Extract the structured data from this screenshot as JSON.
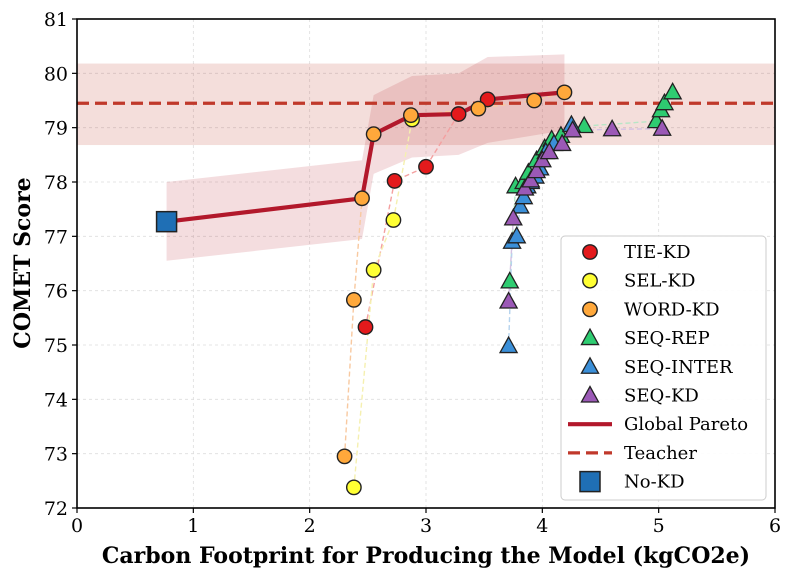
{
  "chart_data": {
    "type": "scatter",
    "xlabel": "Carbon Footprint for Producing the Model (kgCO2e)",
    "ylabel": "COMET Score",
    "xlim": [
      0,
      6
    ],
    "ylim": [
      72,
      81
    ],
    "xticks": [
      "0",
      "1",
      "2",
      "3",
      "4",
      "5",
      "6"
    ],
    "yticks": [
      "72",
      "73",
      "74",
      "75",
      "76",
      "77",
      "78",
      "79",
      "80",
      "81"
    ],
    "grid": true,
    "legend_position": "bottom-right",
    "teacher": {
      "name": "Teacher",
      "y": 79.45,
      "band": [
        78.68,
        80.18
      ],
      "color": "#c0392b"
    },
    "pareto": {
      "name": "Global Pareto",
      "color": "#b2182b",
      "x": [
        0.77,
        2.45,
        2.55,
        2.88,
        3.28,
        3.53,
        4.19
      ],
      "y": [
        77.27,
        77.7,
        78.88,
        79.23,
        79.25,
        79.52,
        79.65
      ],
      "band_upper": [
        78.0,
        78.4,
        79.6,
        79.95,
        80.0,
        80.3,
        80.35
      ],
      "band_lower": [
        76.55,
        76.95,
        78.15,
        78.45,
        78.5,
        78.72,
        78.95
      ]
    },
    "series": [
      {
        "name": "TIE-KD",
        "marker": "circle",
        "color": "#e41a1c",
        "line_color": "#f4a0a0",
        "x": [
          2.48,
          2.73,
          3.0,
          3.28,
          3.53
        ],
        "y": [
          75.33,
          78.02,
          78.28,
          79.25,
          79.52
        ]
      },
      {
        "name": "SEL-KD",
        "marker": "circle",
        "color": "#ffff33",
        "line_color": "#f5f0b0",
        "x": [
          2.38,
          2.55,
          2.72,
          2.88
        ],
        "y": [
          72.38,
          76.38,
          77.3,
          79.15
        ]
      },
      {
        "name": "WORD-KD",
        "marker": "circle",
        "color": "#ffa83b",
        "line_color": "#f8c9a0",
        "x": [
          2.3,
          2.38,
          2.45,
          2.55,
          2.87,
          3.45,
          3.93,
          4.19
        ],
        "y": [
          72.95,
          75.83,
          77.7,
          78.88,
          79.23,
          79.35,
          79.5,
          79.65
        ]
      },
      {
        "name": "SEQ-REP",
        "marker": "triangle",
        "color": "#2ecc71",
        "line_color": "#b8e6c6",
        "x": [
          3.72,
          3.77,
          3.84,
          3.88,
          3.95,
          4.02,
          4.08,
          4.16,
          4.36,
          4.98,
          5.02,
          5.05,
          5.12
        ],
        "y": [
          76.17,
          77.92,
          78.0,
          78.17,
          78.4,
          78.62,
          78.78,
          78.85,
          79.03,
          79.12,
          79.32,
          79.45,
          79.65
        ]
      },
      {
        "name": "SEQ-INTER",
        "marker": "triangle",
        "color": "#3b8fd8",
        "line_color": "#b5d3ee",
        "x": [
          3.71,
          3.74,
          3.78,
          3.81,
          3.84,
          3.87,
          3.9,
          3.94,
          3.98,
          4.03,
          4.1,
          4.25
        ],
        "y": [
          74.98,
          76.9,
          77.0,
          77.55,
          77.72,
          77.92,
          78.0,
          78.1,
          78.25,
          78.55,
          78.7,
          79.05
        ]
      },
      {
        "name": "SEQ-KD",
        "marker": "triangle",
        "color": "#9b59b6",
        "line_color": "#d5c1e3",
        "x": [
          3.71,
          3.75,
          3.85,
          3.9,
          3.95,
          4.0,
          4.06,
          4.17,
          4.26,
          4.6,
          5.03
        ],
        "y": [
          75.8,
          77.33,
          77.88,
          78.03,
          78.2,
          78.4,
          78.55,
          78.7,
          78.95,
          78.97,
          78.98
        ]
      }
    ],
    "nokd": {
      "name": "No-KD",
      "marker": "square",
      "color": "#1f6fb5",
      "x": 0.77,
      "y": 77.27
    }
  }
}
